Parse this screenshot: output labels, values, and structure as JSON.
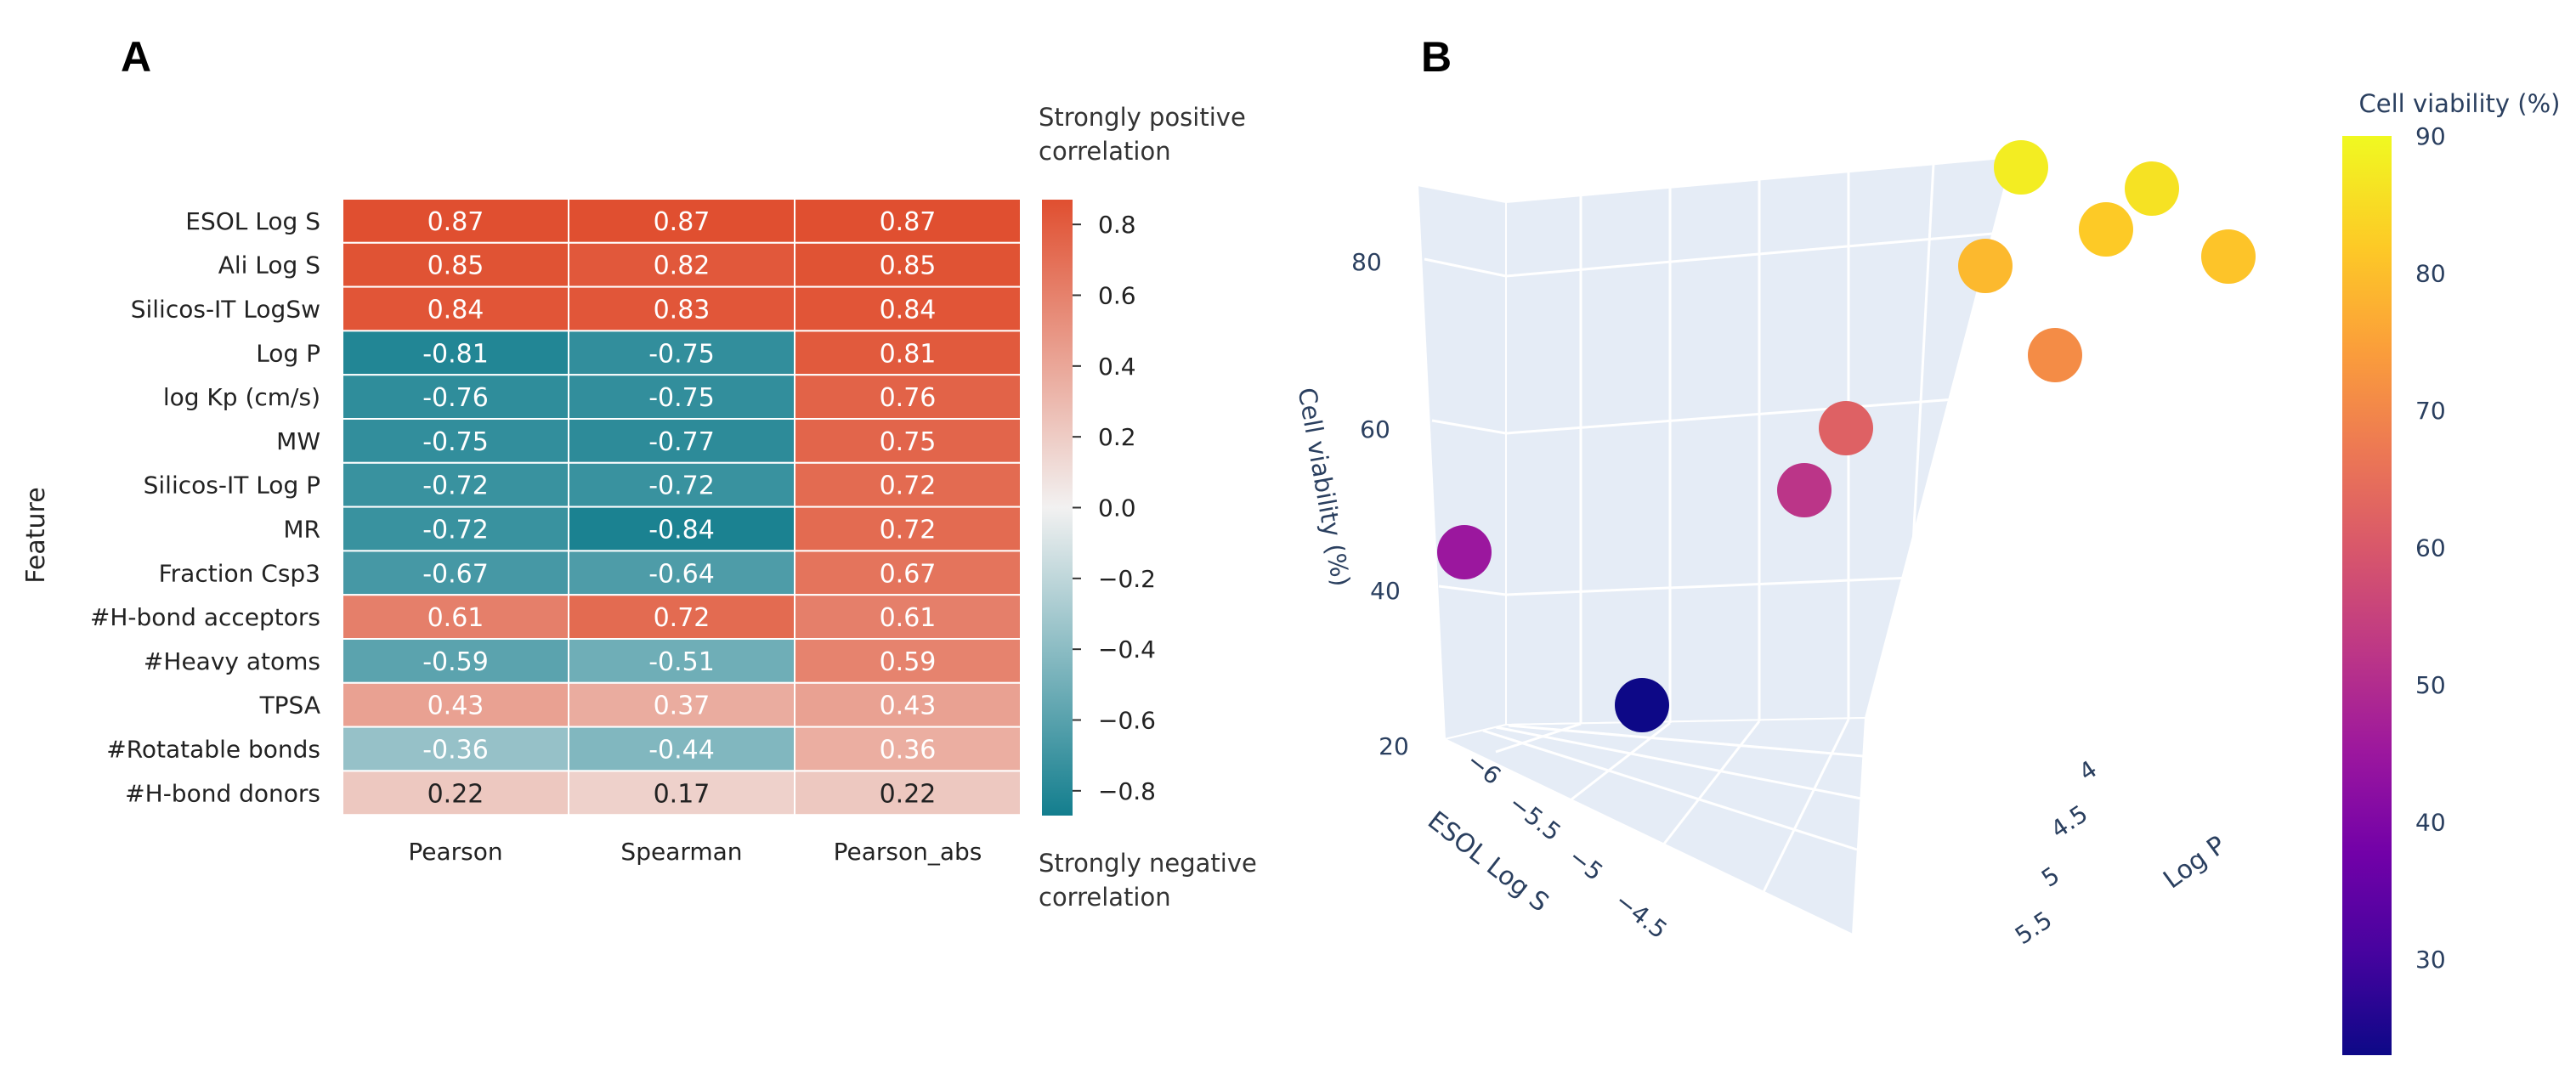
{
  "panels": {
    "a": "A",
    "b": "B"
  },
  "chart_data": [
    {
      "type": "heatmap",
      "ylabel": "Feature",
      "columns": [
        "Pearson",
        "Spearman",
        "Pearson_abs"
      ],
      "rows": [
        {
          "feature": "ESOL Log S",
          "values": [
            0.87,
            0.87,
            0.87
          ]
        },
        {
          "feature": "Ali Log S",
          "values": [
            0.85,
            0.82,
            0.85
          ]
        },
        {
          "feature": "Silicos-IT LogSw",
          "values": [
            0.84,
            0.83,
            0.84
          ]
        },
        {
          "feature": "Log P",
          "values": [
            -0.81,
            -0.75,
            0.81
          ]
        },
        {
          "feature": "log Kp (cm/s)",
          "values": [
            -0.76,
            -0.75,
            0.76
          ]
        },
        {
          "feature": "MW",
          "values": [
            -0.75,
            -0.77,
            0.75
          ]
        },
        {
          "feature": "Silicos-IT Log P",
          "values": [
            -0.72,
            -0.72,
            0.72
          ]
        },
        {
          "feature": "MR",
          "values": [
            -0.72,
            -0.84,
            0.72
          ]
        },
        {
          "feature": "Fraction Csp3",
          "values": [
            -0.67,
            -0.64,
            0.67
          ]
        },
        {
          "feature": "#H-bond acceptors",
          "values": [
            0.61,
            0.72,
            0.61
          ]
        },
        {
          "feature": "#Heavy atoms",
          "values": [
            -0.59,
            -0.51,
            0.59
          ]
        },
        {
          "feature": "TPSA",
          "values": [
            0.43,
            0.37,
            0.43
          ]
        },
        {
          "feature": "#Rotatable bonds",
          "values": [
            -0.36,
            -0.44,
            0.36
          ]
        },
        {
          "feature": "#H-bond donors",
          "values": [
            0.22,
            0.17,
            0.22
          ]
        }
      ],
      "colorbar": {
        "range": [
          -0.87,
          0.87
        ],
        "ticks": [
          "0.8",
          "0.6",
          "0.4",
          "0.2",
          "0.0",
          "−0.2",
          "−0.4",
          "−0.6",
          "−0.8"
        ],
        "tick_values": [
          0.8,
          0.6,
          0.4,
          0.2,
          0.0,
          -0.2,
          -0.4,
          -0.6,
          -0.8
        ],
        "colors": {
          "negative": "#137e8e",
          "neutral": "#f2f1f1",
          "positive": "#e04f30"
        },
        "top_note": [
          "Strongly positive",
          "correlation"
        ],
        "bottom_note": [
          "Strongly negative",
          "correlation"
        ]
      }
    },
    {
      "type": "scatter",
      "subtype": "3d",
      "axes": {
        "x": {
          "label": "ESOL Log S",
          "ticks": [
            "−6",
            "−5.5",
            "−5",
            "−4.5"
          ]
        },
        "y": {
          "label": "Log P",
          "ticks": [
            "4",
            "4.5",
            "5",
            "5.5"
          ]
        },
        "z": {
          "label": "Cell viability (%)",
          "ticks": [
            "20",
            "40",
            "60",
            "80"
          ]
        }
      },
      "points": [
        {
          "viability": 88
        },
        {
          "viability": 86
        },
        {
          "viability": 82
        },
        {
          "viability": 81
        },
        {
          "viability": 79
        },
        {
          "viability": 71
        },
        {
          "viability": 62
        },
        {
          "viability": 52
        },
        {
          "viability": 45
        },
        {
          "viability": 23
        }
      ],
      "colorbar": {
        "title": "Cell viability (%)",
        "range": [
          23,
          90
        ],
        "ticks": [
          "90",
          "80",
          "70",
          "60",
          "50",
          "40",
          "30"
        ],
        "tick_values": [
          90,
          80,
          70,
          60,
          50,
          40,
          30
        ]
      }
    }
  ]
}
